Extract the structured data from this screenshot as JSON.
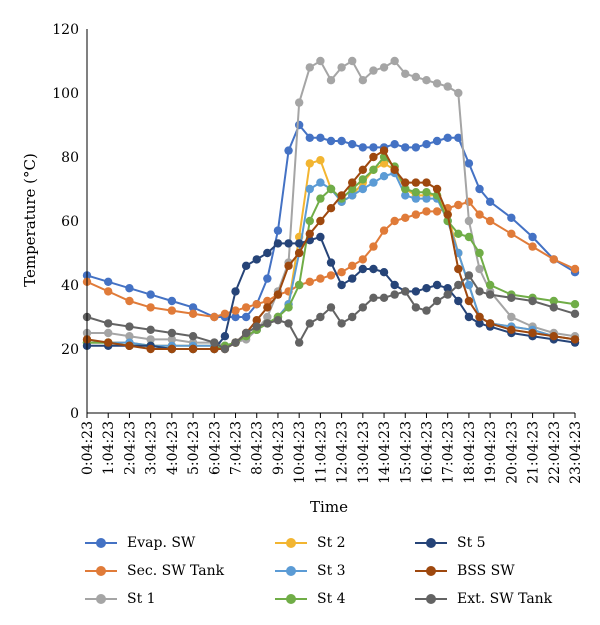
{
  "chart_data": {
    "type": "line",
    "title": "",
    "xlabel": "Time",
    "ylabel": "Temperature (°C)",
    "ylim": [
      0,
      120
    ],
    "yticks": [
      0,
      20,
      40,
      60,
      80,
      100,
      120
    ],
    "xlim": [
      0,
      23
    ],
    "x_tick_labels": [
      "0:04:23",
      "1:04:23",
      "2:04:23",
      "3:04:23",
      "4:04:23",
      "5:04:23",
      "6:04:23",
      "7:04:23",
      "8:04:23",
      "9:04:23",
      "10:04:23",
      "11:04:23",
      "12:04:23",
      "13:04:23",
      "14:04:23",
      "15:04:23",
      "16:04:23",
      "17:04:23",
      "18:04:23",
      "19:04:23",
      "20:04:23",
      "21:04:23",
      "22:04:23",
      "23:04:23"
    ],
    "x": [
      0,
      1,
      2,
      3,
      4,
      5,
      6,
      6.5,
      7,
      7.5,
      8,
      8.5,
      9,
      9.5,
      10,
      10.5,
      11,
      11.5,
      12,
      12.5,
      13,
      13.5,
      14,
      14.5,
      15,
      15.5,
      16,
      16.5,
      17,
      17.5,
      18,
      18.5,
      19,
      20,
      21,
      22,
      23
    ],
    "grid": false,
    "legend_position": "bottom",
    "series": [
      {
        "name": "Evap. SW",
        "color": "#4472C4",
        "values": [
          43,
          41,
          39,
          37,
          35,
          33,
          30,
          30,
          30,
          30,
          34,
          42,
          57,
          82,
          90,
          86,
          86,
          85,
          85,
          84,
          83,
          83,
          83,
          84,
          83,
          83,
          84,
          85,
          86,
          86,
          78,
          70,
          66,
          61,
          55,
          48,
          44
        ]
      },
      {
        "name": "Sec. SW Tank",
        "color": "#E07B39",
        "values": [
          41,
          38,
          35,
          33,
          32,
          31,
          30,
          31,
          32,
          33,
          34,
          35,
          37,
          38,
          40,
          41,
          42,
          43,
          44,
          46,
          48,
          52,
          57,
          60,
          61,
          62,
          63,
          63,
          64,
          65,
          66,
          62,
          60,
          56,
          52,
          48,
          45
        ]
      },
      {
        "name": "St 1",
        "color": "#A5A5A5",
        "values": [
          25,
          25,
          24,
          23,
          23,
          22,
          22,
          21,
          22,
          23,
          26,
          30,
          38,
          47,
          97,
          108,
          110,
          104,
          108,
          110,
          104,
          107,
          108,
          110,
          106,
          105,
          104,
          103,
          102,
          100,
          60,
          45,
          38,
          30,
          27,
          25,
          24
        ]
      },
      {
        "name": "St 2",
        "color": "#F2B531",
        "values": [
          22,
          22,
          22,
          21,
          21,
          21,
          21,
          21,
          22,
          24,
          26,
          28,
          30,
          34,
          55,
          78,
          79,
          70,
          66,
          68,
          72,
          76,
          78,
          76,
          70,
          68,
          68,
          68,
          62,
          50,
          40,
          30,
          28,
          27,
          26,
          24,
          23
        ]
      },
      {
        "name": "St 3",
        "color": "#5B9BD5",
        "values": [
          22,
          22,
          22,
          21,
          21,
          21,
          21,
          21,
          22,
          24,
          26,
          28,
          30,
          34,
          50,
          70,
          72,
          70,
          66,
          68,
          70,
          72,
          74,
          75,
          68,
          67,
          67,
          67,
          60,
          50,
          40,
          30,
          28,
          27,
          26,
          24,
          23
        ]
      },
      {
        "name": "St 4",
        "color": "#70AD47",
        "values": [
          22,
          22,
          21,
          21,
          20,
          20,
          20,
          21,
          22,
          24,
          26,
          28,
          30,
          33,
          40,
          60,
          67,
          70,
          67,
          70,
          73,
          76,
          80,
          77,
          70,
          69,
          69,
          68,
          60,
          56,
          55,
          50,
          40,
          37,
          36,
          35,
          34
        ]
      },
      {
        "name": "St 5",
        "color": "#264478",
        "values": [
          21,
          21,
          21,
          21,
          20,
          20,
          20,
          24,
          38,
          46,
          48,
          50,
          53,
          53,
          53,
          54,
          55,
          47,
          40,
          42,
          45,
          45,
          44,
          40,
          38,
          38,
          39,
          40,
          39,
          35,
          30,
          28,
          27,
          25,
          24,
          23,
          22
        ]
      },
      {
        "name": "BSS SW",
        "color": "#9E480E",
        "values": [
          23,
          22,
          21,
          20,
          20,
          20,
          20,
          20,
          22,
          25,
          29,
          33,
          37,
          46,
          50,
          56,
          60,
          64,
          68,
          72,
          76,
          80,
          82,
          76,
          72,
          72,
          72,
          70,
          62,
          45,
          35,
          30,
          28,
          26,
          25,
          24,
          23
        ]
      },
      {
        "name": "Ext. SW Tank",
        "color": "#636363",
        "values": [
          30,
          28,
          27,
          26,
          25,
          24,
          22,
          20,
          22,
          25,
          27,
          28,
          29,
          28,
          22,
          28,
          30,
          33,
          28,
          30,
          33,
          36,
          36,
          37,
          38,
          33,
          32,
          35,
          37,
          40,
          43,
          38,
          37,
          36,
          35,
          33,
          31
        ]
      }
    ]
  }
}
